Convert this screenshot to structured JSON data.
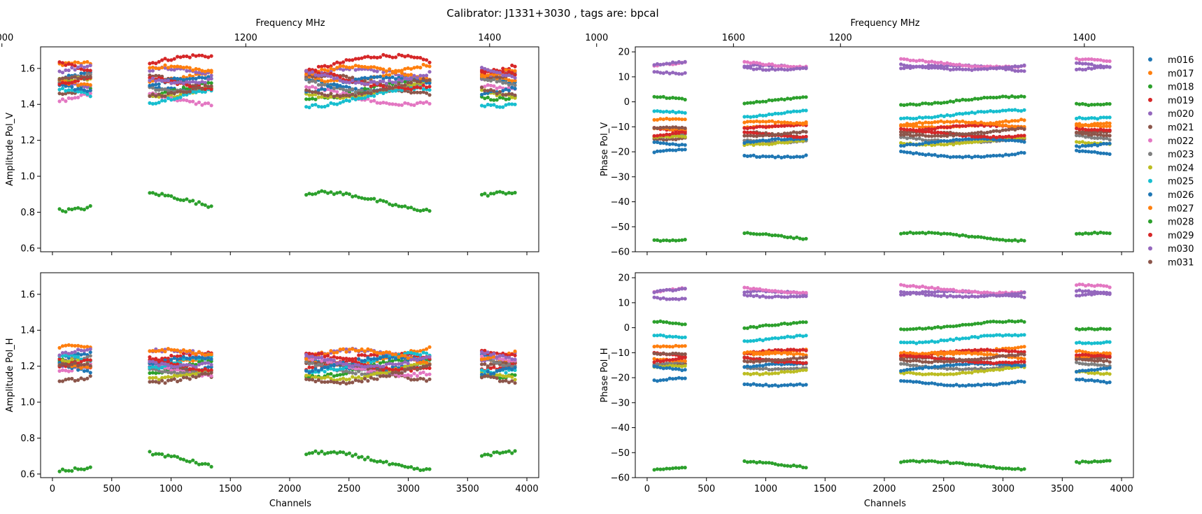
{
  "chart_data": {
    "type": "scatter",
    "title": "Calibrator: J1331+3030 , tags are: bpcal",
    "top_axis_label": "Frequency MHz",
    "top_axis_ticks": [
      "1000",
      "1200",
      "1400",
      "1600"
    ],
    "freq_ticks_mhz": [
      1000,
      1200,
      1400,
      1600
    ],
    "channel_range": [
      -100,
      4100
    ],
    "xlabel": "Channels",
    "x_ticks": [
      0,
      500,
      1000,
      1500,
      2000,
      2500,
      3000,
      3500,
      4000
    ],
    "channel_segments": [
      [
        60,
        320
      ],
      [
        820,
        1340
      ],
      [
        2140,
        3180
      ],
      [
        3620,
        3900
      ]
    ],
    "legend_position": "right",
    "series": [
      {
        "name": "m016",
        "color": "#1f77b4",
        "amp_v": 1.53,
        "amp_h": 1.23,
        "phase_v": -20.5,
        "phase_h": -21.5
      },
      {
        "name": "m017",
        "color": "#ff7f0e",
        "amp_v": 1.58,
        "amp_h": 1.26,
        "phase_v": -8.5,
        "phase_h": -9.0
      },
      {
        "name": "m018",
        "color": "#2ca02c",
        "amp_v": 1.48,
        "amp_h": 1.19,
        "phase_v": 0.5,
        "phase_h": 1.0
      },
      {
        "name": "m019",
        "color": "#d62728",
        "amp_v": 1.62,
        "amp_h": 1.22,
        "phase_v": -11.0,
        "phase_h": -10.5
      },
      {
        "name": "m020",
        "color": "#9467bd",
        "amp_v": 1.55,
        "amp_h": 1.24,
        "phase_v": 13.0,
        "phase_h": 13.0
      },
      {
        "name": "m021",
        "color": "#8c564b",
        "amp_v": 1.51,
        "amp_h": 1.17,
        "phase_v": -13.5,
        "phase_h": -13.5
      },
      {
        "name": "m022",
        "color": "#e377c2",
        "amp_v": 1.45,
        "amp_h": 1.2,
        "phase_v": 15.5,
        "phase_h": 15.5
      },
      {
        "name": "m023",
        "color": "#7f7f7f",
        "amp_v": 1.52,
        "amp_h": 1.21,
        "phase_v": -14.5,
        "phase_h": -15.0
      },
      {
        "name": "m024",
        "color": "#bcbd22",
        "amp_v": 1.49,
        "amp_h": 1.18,
        "phase_v": -15.5,
        "phase_h": -17.0
      },
      {
        "name": "m025",
        "color": "#17becf",
        "amp_v": 1.44,
        "amp_h": 1.22,
        "phase_v": -5.0,
        "phase_h": -4.5
      },
      {
        "name": "m026",
        "color": "#1f77b4",
        "amp_v": 1.5,
        "amp_h": 1.2,
        "phase_v": -16.5,
        "phase_h": -16.0
      },
      {
        "name": "m027",
        "color": "#ff7f0e",
        "amp_v": 1.56,
        "amp_h": 1.24,
        "phase_v": -9.5,
        "phase_h": -11.5
      },
      {
        "name": "m028",
        "color": "#2ca02c",
        "amp_v": 0.86,
        "amp_h": 0.67,
        "phase_v": -54.0,
        "phase_h": -55.0
      },
      {
        "name": "m029",
        "color": "#d62728",
        "amp_v": 1.54,
        "amp_h": 1.23,
        "phase_v": -12.5,
        "phase_h": -12.5
      },
      {
        "name": "m030",
        "color": "#9467bd",
        "amp_v": 1.57,
        "amp_h": 1.25,
        "phase_v": 14.5,
        "phase_h": 14.0
      },
      {
        "name": "m031",
        "color": "#8c564b",
        "amp_v": 1.5,
        "amp_h": 1.16,
        "phase_v": -12.0,
        "phase_h": -12.0
      }
    ],
    "panels": [
      {
        "id": "amp-v",
        "ylabel": "Amplitude Pol_V",
        "ylim": [
          0.58,
          1.72
        ],
        "yticks": [
          "0.6",
          "0.8",
          "1.0",
          "1.2",
          "1.4",
          "1.6"
        ],
        "ytick_values": [
          0.6,
          0.8,
          1.0,
          1.2,
          1.4,
          1.6
        ],
        "field": "amp_v",
        "spread": 0.05
      },
      {
        "id": "amp-h",
        "ylabel": "Amplitude Pol_H",
        "ylim": [
          0.58,
          1.72
        ],
        "yticks": [
          "0.6",
          "0.8",
          "1.0",
          "1.2",
          "1.4",
          "1.6"
        ],
        "ytick_values": [
          0.6,
          0.8,
          1.0,
          1.2,
          1.4,
          1.6
        ],
        "field": "amp_h",
        "spread": 0.05
      },
      {
        "id": "phase-v",
        "ylabel": "Phase Pol_V",
        "ylim": [
          -60,
          22
        ],
        "yticks": [
          "−60",
          "−50",
          "−40",
          "−30",
          "−20",
          "−10",
          "0",
          "10",
          "20"
        ],
        "ytick_values": [
          -60,
          -50,
          -40,
          -30,
          -20,
          -10,
          0,
          10,
          20
        ],
        "field": "phase_v",
        "spread": 1.6
      },
      {
        "id": "phase-h",
        "ylabel": "Phase Pol_H",
        "ylim": [
          -60,
          22
        ],
        "yticks": [
          "−60",
          "−50",
          "−40",
          "−30",
          "−20",
          "−10",
          "0",
          "10",
          "20"
        ],
        "ytick_values": [
          -60,
          -50,
          -40,
          -30,
          -20,
          -10,
          0,
          10,
          20
        ],
        "field": "phase_h",
        "spread": 1.6
      }
    ]
  }
}
